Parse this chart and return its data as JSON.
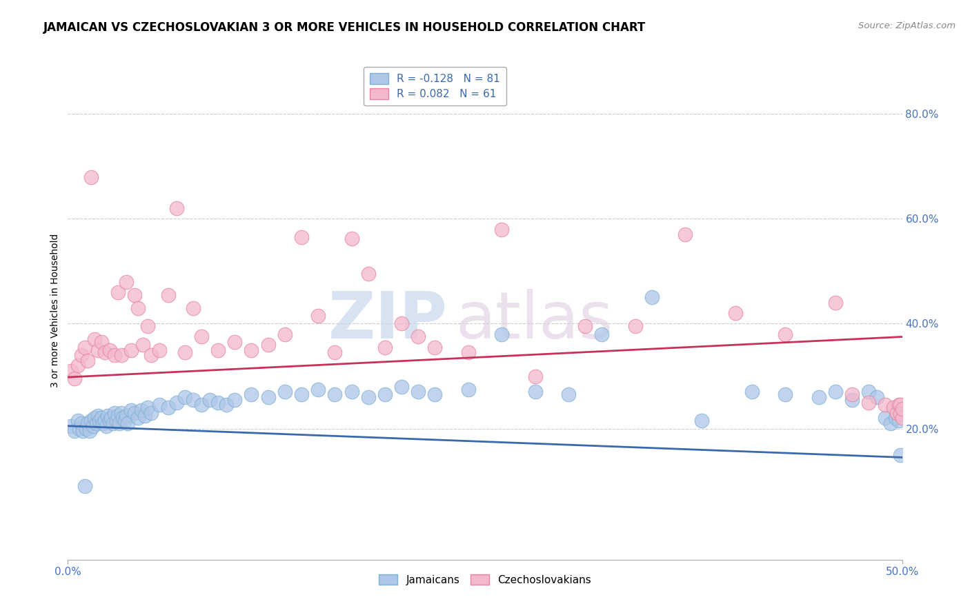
{
  "title": "JAMAICAN VS CZECHOSLOVAKIAN 3 OR MORE VEHICLES IN HOUSEHOLD CORRELATION CHART",
  "source": "Source: ZipAtlas.com",
  "ylabel": "3 or more Vehicles in Household",
  "ytick_values": [
    0.2,
    0.4,
    0.6,
    0.8
  ],
  "xlim": [
    0.0,
    0.5
  ],
  "ylim": [
    -0.05,
    0.9
  ],
  "legend_entries": [
    {
      "label": "R = -0.128   N = 81",
      "color": "#aec6e8"
    },
    {
      "label": "R = 0.082   N = 61",
      "color": "#f4b8cc"
    }
  ],
  "legend_series": [
    "Jamaicans",
    "Czechoslovakians"
  ],
  "blue_scatter_x": [
    0.002,
    0.004,
    0.006,
    0.007,
    0.008,
    0.009,
    0.01,
    0.011,
    0.012,
    0.013,
    0.014,
    0.015,
    0.016,
    0.017,
    0.018,
    0.019,
    0.02,
    0.021,
    0.022,
    0.023,
    0.024,
    0.025,
    0.026,
    0.027,
    0.028,
    0.029,
    0.03,
    0.031,
    0.032,
    0.033,
    0.034,
    0.035,
    0.036,
    0.038,
    0.04,
    0.042,
    0.044,
    0.046,
    0.048,
    0.05,
    0.055,
    0.06,
    0.065,
    0.07,
    0.075,
    0.08,
    0.085,
    0.09,
    0.095,
    0.1,
    0.11,
    0.12,
    0.13,
    0.14,
    0.15,
    0.16,
    0.17,
    0.18,
    0.19,
    0.2,
    0.21,
    0.22,
    0.24,
    0.26,
    0.28,
    0.3,
    0.32,
    0.35,
    0.38,
    0.41,
    0.43,
    0.45,
    0.46,
    0.47,
    0.48,
    0.485,
    0.49,
    0.493,
    0.496,
    0.498,
    0.499
  ],
  "blue_scatter_y": [
    0.205,
    0.195,
    0.215,
    0.2,
    0.21,
    0.195,
    0.09,
    0.2,
    0.21,
    0.195,
    0.215,
    0.205,
    0.22,
    0.21,
    0.225,
    0.215,
    0.22,
    0.21,
    0.215,
    0.205,
    0.225,
    0.215,
    0.22,
    0.21,
    0.23,
    0.215,
    0.225,
    0.21,
    0.23,
    0.22,
    0.215,
    0.225,
    0.21,
    0.235,
    0.23,
    0.22,
    0.235,
    0.225,
    0.24,
    0.23,
    0.245,
    0.24,
    0.25,
    0.26,
    0.255,
    0.245,
    0.255,
    0.25,
    0.245,
    0.255,
    0.265,
    0.26,
    0.27,
    0.265,
    0.275,
    0.265,
    0.27,
    0.26,
    0.265,
    0.28,
    0.27,
    0.265,
    0.275,
    0.38,
    0.27,
    0.265,
    0.38,
    0.45,
    0.215,
    0.27,
    0.265,
    0.26,
    0.27,
    0.255,
    0.27,
    0.26,
    0.22,
    0.21,
    0.22,
    0.215,
    0.15
  ],
  "pink_scatter_x": [
    0.002,
    0.004,
    0.006,
    0.008,
    0.01,
    0.012,
    0.014,
    0.016,
    0.018,
    0.02,
    0.022,
    0.025,
    0.028,
    0.03,
    0.032,
    0.035,
    0.038,
    0.04,
    0.042,
    0.045,
    0.048,
    0.05,
    0.055,
    0.06,
    0.065,
    0.07,
    0.075,
    0.08,
    0.09,
    0.1,
    0.11,
    0.12,
    0.13,
    0.14,
    0.15,
    0.16,
    0.17,
    0.18,
    0.19,
    0.2,
    0.21,
    0.22,
    0.24,
    0.26,
    0.28,
    0.31,
    0.34,
    0.37,
    0.4,
    0.43,
    0.46,
    0.47,
    0.48,
    0.49,
    0.495,
    0.497,
    0.498,
    0.499,
    0.499,
    0.5,
    0.5
  ],
  "pink_scatter_y": [
    0.31,
    0.295,
    0.32,
    0.34,
    0.355,
    0.33,
    0.68,
    0.37,
    0.35,
    0.365,
    0.345,
    0.35,
    0.34,
    0.46,
    0.34,
    0.48,
    0.35,
    0.455,
    0.43,
    0.36,
    0.395,
    0.34,
    0.35,
    0.455,
    0.62,
    0.345,
    0.43,
    0.375,
    0.35,
    0.365,
    0.35,
    0.36,
    0.38,
    0.565,
    0.415,
    0.345,
    0.562,
    0.495,
    0.355,
    0.4,
    0.375,
    0.355,
    0.345,
    0.58,
    0.3,
    0.395,
    0.395,
    0.57,
    0.42,
    0.38,
    0.44,
    0.265,
    0.25,
    0.245,
    0.24,
    0.23,
    0.245,
    0.245,
    0.228,
    0.22,
    0.238
  ],
  "blue_color": "#aec6e8",
  "blue_edge_color": "#7bafd4",
  "pink_color": "#f4b8cc",
  "pink_edge_color": "#e8829e",
  "blue_line_color": "#3a6aad",
  "pink_line_color": "#c8325a",
  "blue_line_start_y": 0.205,
  "blue_line_end_y": 0.145,
  "pink_line_start_y": 0.298,
  "pink_line_end_y": 0.375,
  "grid_color": "#cccccc",
  "title_fontsize": 12,
  "axis_label_fontsize": 10,
  "tick_fontsize": 11
}
